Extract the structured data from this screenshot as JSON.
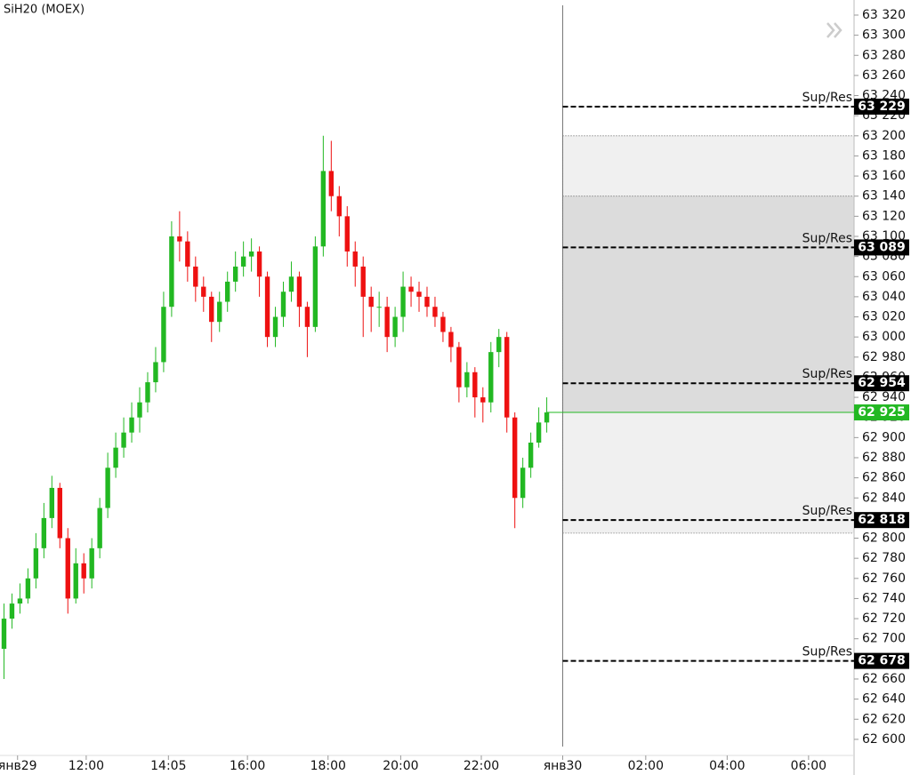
{
  "chart_data": {
    "type": "candlestick",
    "title": "SiH20 (MOEX)",
    "up_color": "#22b822",
    "down_color": "#ee1111",
    "open": [
      62690,
      62720,
      62735,
      62740,
      62760,
      62790,
      62820,
      62850,
      62800,
      62740,
      62775,
      62760,
      62790,
      62830,
      62870,
      62890,
      62905,
      62920,
      62935,
      62955,
      62975,
      63030,
      63100,
      63095,
      63070,
      63050,
      63040,
      63015,
      63035,
      63055,
      63070,
      63080,
      63085,
      63060,
      63000,
      63020,
      63045,
      63060,
      63030,
      63010,
      63090,
      63165,
      63140,
      63120,
      63085,
      63070,
      63040,
      63030,
      63030,
      63000,
      63020,
      63050,
      63045,
      63040,
      63030,
      63020,
      63005,
      62990,
      62950,
      62965,
      62940,
      62935,
      62985,
      63000,
      62920,
      62840,
      62870,
      62895,
      62915
    ],
    "high": [
      62735,
      62745,
      62755,
      62770,
      62805,
      62835,
      62862,
      62855,
      62810,
      62790,
      62785,
      62800,
      62840,
      62885,
      62905,
      62920,
      62935,
      62950,
      62965,
      62990,
      63045,
      63115,
      63125,
      63105,
      63080,
      63060,
      63045,
      63045,
      63065,
      63085,
      63095,
      63098,
      63090,
      63065,
      63030,
      63055,
      63075,
      63065,
      63035,
      63100,
      63200,
      63195,
      63150,
      63130,
      63095,
      63080,
      63050,
      63045,
      63040,
      63030,
      63065,
      63060,
      63055,
      63050,
      63040,
      63025,
      63010,
      62995,
      62975,
      62970,
      62950,
      62995,
      63008,
      63005,
      62925,
      62880,
      62905,
      62930,
      62940
    ],
    "low": [
      62660,
      62710,
      62725,
      62735,
      62750,
      62780,
      62810,
      62790,
      62725,
      62735,
      62745,
      62750,
      62780,
      62820,
      62860,
      62880,
      62895,
      62905,
      62925,
      62945,
      62965,
      63020,
      63075,
      63055,
      63035,
      63025,
      62995,
      63005,
      63025,
      63045,
      63060,
      63065,
      63040,
      62990,
      62990,
      63010,
      63035,
      63010,
      62980,
      63005,
      63080,
      63125,
      63100,
      63070,
      63050,
      63000,
      63005,
      63010,
      62985,
      62990,
      63005,
      63030,
      63025,
      63020,
      63010,
      62995,
      62975,
      62935,
      62940,
      62920,
      62915,
      62925,
      62970,
      62905,
      62810,
      62830,
      62860,
      62890,
      62905
    ],
    "close": [
      62720,
      62735,
      62740,
      62760,
      62790,
      62820,
      62850,
      62800,
      62740,
      62775,
      62760,
      62790,
      62830,
      62870,
      62890,
      62905,
      62920,
      62935,
      62955,
      62975,
      63030,
      63100,
      63095,
      63070,
      63050,
      63040,
      63015,
      63035,
      63055,
      63070,
      63080,
      63085,
      63060,
      63000,
      63020,
      63045,
      63060,
      63030,
      63010,
      63090,
      63165,
      63140,
      63120,
      63085,
      63070,
      63040,
      63030,
      63030,
      63000,
      63020,
      63050,
      63045,
      63040,
      63030,
      63020,
      63005,
      62990,
      62950,
      62965,
      62940,
      62935,
      62985,
      63000,
      62920,
      62840,
      62870,
      62895,
      62915,
      62925
    ],
    "xlim": [
      -0.5,
      106.5
    ],
    "xticks": [
      {
        "value": 1.7,
        "label": "янв29"
      },
      {
        "value": 10.3,
        "label": "12:00"
      },
      {
        "value": 20.6,
        "label": "14:05"
      },
      {
        "value": 30.5,
        "label": "16:00"
      },
      {
        "value": 40.6,
        "label": "18:00"
      },
      {
        "value": 49.7,
        "label": "20:00"
      },
      {
        "value": 59.8,
        "label": "22:00"
      },
      {
        "value": 70,
        "label": "янв30"
      },
      {
        "value": 80.4,
        "label": "02:00"
      },
      {
        "value": 90.6,
        "label": "04:00"
      },
      {
        "value": 100.8,
        "label": "06:00"
      }
    ],
    "session_break": 70,
    "ylim": [
      62584,
      63335
    ],
    "yticks": [
      {
        "value": 62600,
        "label": "62 600"
      },
      {
        "value": 62620,
        "label": "62 620"
      },
      {
        "value": 62640,
        "label": "62 640"
      },
      {
        "value": 62660,
        "label": "62 660"
      },
      {
        "value": 62680,
        "label": "62 680"
      },
      {
        "value": 62700,
        "label": "62 700"
      },
      {
        "value": 62720,
        "label": "62 720"
      },
      {
        "value": 62740,
        "label": "62 740"
      },
      {
        "value": 62760,
        "label": "62 760"
      },
      {
        "value": 62780,
        "label": "62 780"
      },
      {
        "value": 62800,
        "label": "62 800"
      },
      {
        "value": 62820,
        "label": "62 820"
      },
      {
        "value": 62840,
        "label": "62 840"
      },
      {
        "value": 62860,
        "label": "62 860"
      },
      {
        "value": 62880,
        "label": "62 880"
      },
      {
        "value": 62900,
        "label": "62 900"
      },
      {
        "value": 62920,
        "label": "62 920"
      },
      {
        "value": 62940,
        "label": "62 940"
      },
      {
        "value": 62960,
        "label": "62 960"
      },
      {
        "value": 62980,
        "label": "62 980"
      },
      {
        "value": 63000,
        "label": "63 000"
      },
      {
        "value": 63020,
        "label": "63 020"
      },
      {
        "value": 63040,
        "label": "63 040"
      },
      {
        "value": 63060,
        "label": "63 060"
      },
      {
        "value": 63080,
        "label": "63 080"
      },
      {
        "value": 63100,
        "label": "63 100"
      },
      {
        "value": 63120,
        "label": "63 120"
      },
      {
        "value": 63140,
        "label": "63 140"
      },
      {
        "value": 63160,
        "label": "63 160"
      },
      {
        "value": 63180,
        "label": "63 180"
      },
      {
        "value": 63200,
        "label": "63 200"
      },
      {
        "value": 63220,
        "label": "63 220"
      },
      {
        "value": 63240,
        "label": "63 240"
      },
      {
        "value": 63260,
        "label": "63 260"
      },
      {
        "value": 63280,
        "label": "63 280"
      },
      {
        "value": 63300,
        "label": "63 300"
      },
      {
        "value": 63320,
        "label": "63 320"
      }
    ],
    "zones": [
      {
        "from": 62805,
        "to": 63200,
        "color": "#f0f0f0"
      },
      {
        "from": 62925,
        "to": 63140,
        "color": "#dcdcdc"
      }
    ],
    "levels": [
      {
        "label": "Sup/Res",
        "value": 63229,
        "value_label": "63 229"
      },
      {
        "label": "Sup/Res",
        "value": 63089,
        "value_label": "63 089"
      },
      {
        "label": "Sup/Res",
        "value": 62954,
        "value_label": "62 954"
      },
      {
        "label": "Sup/Res",
        "value": 62818,
        "value_label": "62 818"
      },
      {
        "label": "Sup/Res",
        "value": 62678,
        "value_label": "62 678"
      }
    ],
    "last_price": {
      "value": 62925,
      "label": "62 925",
      "color": "#22b822"
    }
  }
}
